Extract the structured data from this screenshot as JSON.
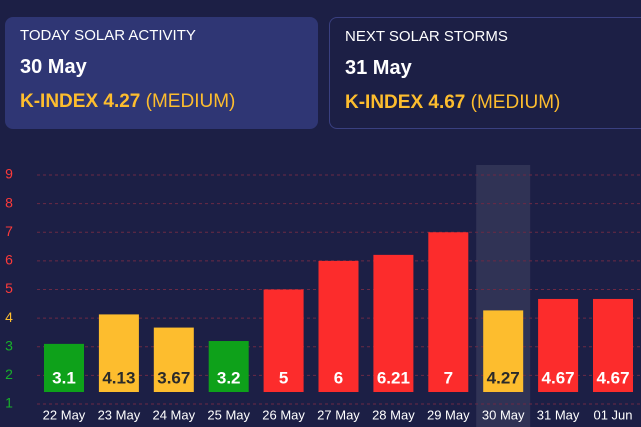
{
  "cards": [
    {
      "label": "TODAY SOLAR ACTIVITY",
      "date": "30 May",
      "kindex": "K-INDEX 4.27",
      "level": "(MEDIUM)"
    },
    {
      "label": "NEXT SOLAR STORMS",
      "date": "31 May",
      "kindex": "K-INDEX 4.67",
      "level": "(MEDIUM)"
    }
  ],
  "chart_data": {
    "type": "bar",
    "categories": [
      "22 May",
      "23 May",
      "24 May",
      "25 May",
      "26 May",
      "27 May",
      "28 May",
      "29 May",
      "30 May",
      "31 May",
      "01 Jun"
    ],
    "values": [
      3.1,
      4.13,
      3.67,
      3.2,
      5,
      6,
      6.21,
      7,
      4.27,
      4.67,
      4.67
    ],
    "colors": [
      "#0ea11a",
      "#fdbd2e",
      "#fdbd2e",
      "#0ea11a",
      "#fc2c2c",
      "#fc2c2c",
      "#fc2c2c",
      "#fc2c2c",
      "#fdbd2e",
      "#fc2c2c",
      "#fc2c2c"
    ],
    "ylim": [
      1,
      9
    ],
    "yticks": [
      1,
      2,
      3,
      4,
      5,
      6,
      7,
      8,
      9
    ],
    "ytick_colors": [
      "#17b02a",
      "#17b02a",
      "#17b02a",
      "#fdbd2e",
      "#fc3a3a",
      "#fc3a3a",
      "#fc3a3a",
      "#fc3a3a",
      "#fc3a3a"
    ],
    "grid": true,
    "highlight_index": 8
  }
}
